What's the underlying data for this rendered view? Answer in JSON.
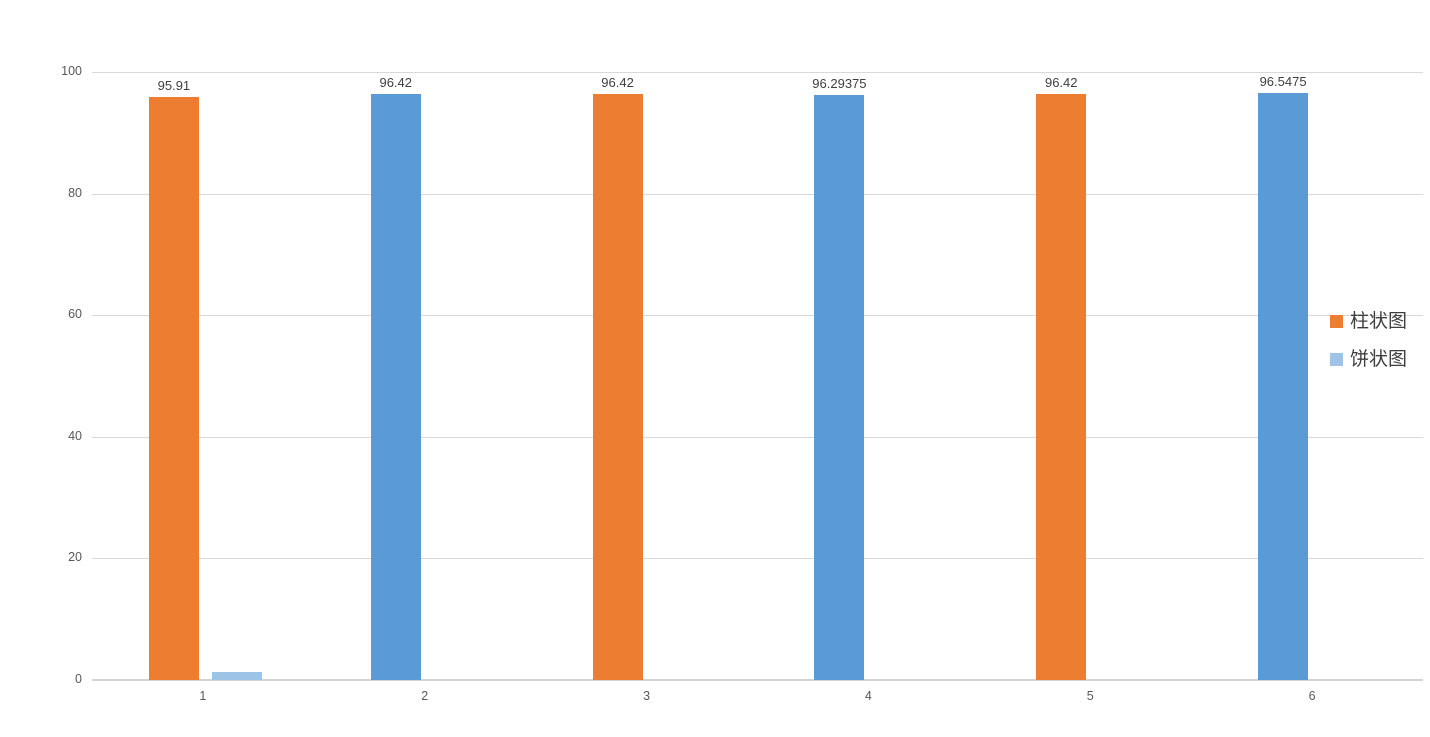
{
  "chart_data": {
    "type": "bar",
    "title": "",
    "categories": [
      "1",
      "2",
      "3",
      "4",
      "5",
      "6"
    ],
    "series": [
      {
        "name": "柱状图",
        "values": [
          95.91,
          96.42,
          96.42,
          96.29375,
          96.42,
          96.5475
        ],
        "data_labels": [
          "95.91",
          "96.42",
          "96.42",
          "96.29375",
          "96.42",
          "96.5475"
        ],
        "point_colors": [
          "#ED7D31",
          "#5B9BD5",
          "#ED7D31",
          "#5B9BD5",
          "#ED7D31",
          "#5B9BD5"
        ],
        "legend_color": "#ED7D31"
      },
      {
        "name": "饼状图",
        "values": [
          1.3,
          0,
          0,
          0,
          0,
          0
        ],
        "data_labels": [
          "",
          "",
          "",
          "",
          "",
          ""
        ],
        "point_colors": [
          "#9DC3E6",
          "#9DC3E6",
          "#9DC3E6",
          "#9DC3E6",
          "#9DC3E6",
          "#9DC3E6"
        ],
        "legend_color": "#9DC3E6"
      }
    ],
    "y_axis": {
      "min": 0,
      "max": 100,
      "ticks": [
        0,
        20,
        40,
        60,
        80,
        100
      ],
      "tick_labels": [
        "0",
        "20",
        "40",
        "60",
        "80",
        "100"
      ]
    },
    "legend": {
      "position": "middle-right",
      "items": [
        "柱状图",
        "饼状图"
      ]
    },
    "grid": true,
    "colors": {
      "gridline": "#D9D9D9",
      "axis_label_text": "#595959",
      "data_label_text": "#404040",
      "legend_text": "#3F3F3F",
      "background": "#FFFFFF"
    }
  }
}
